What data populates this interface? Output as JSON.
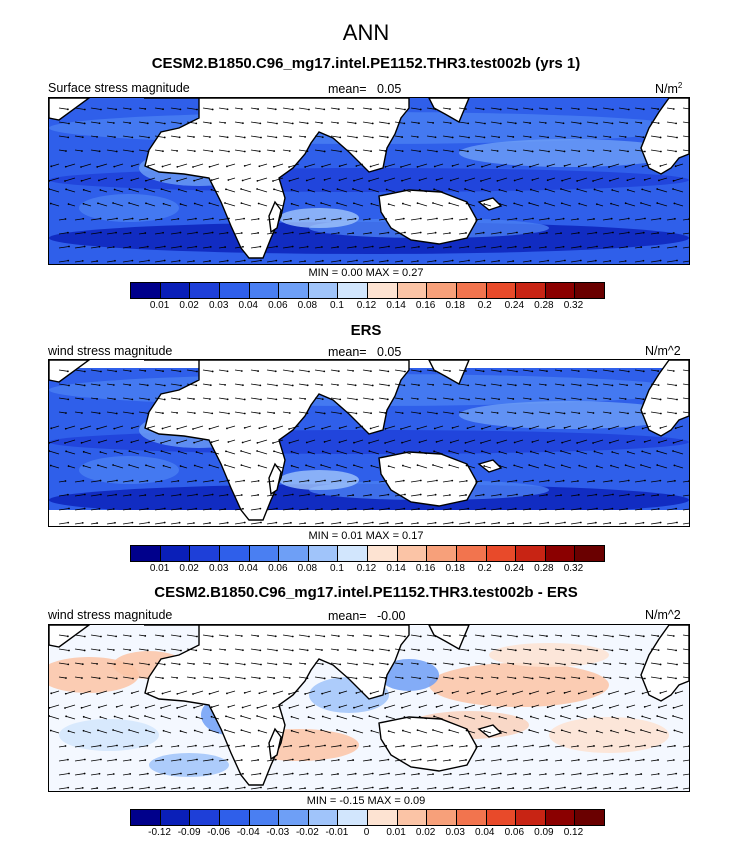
{
  "title": "ANN",
  "panels": [
    {
      "title": "CESM2.B1850.C96_mg17.intel.PE1152.THR3.test002b (yrs 1)",
      "left_label": "Surface stress magnitude",
      "mean_label": "mean=",
      "mean_value": "0.05",
      "units": "N/m",
      "units_sup": "2",
      "minmax": "MIN =  0.00 MAX =  0.27",
      "ticks": [
        "0.01",
        "0.02",
        "0.03",
        "0.04",
        "0.06",
        "0.08",
        "0.1",
        "0.12",
        "0.14",
        "0.16",
        "0.18",
        "0.2",
        "0.24",
        "0.28",
        "0.32"
      ],
      "colors": [
        "#00008b",
        "#0a1fb8",
        "#1e3fd8",
        "#2f5fea",
        "#4a7ff2",
        "#6e9ff6",
        "#a0c4fa",
        "#d2e6fd",
        "#fde3d2",
        "#fbc4a6",
        "#f7a07a",
        "#f2744e",
        "#e84a2a",
        "#c82414",
        "#8b0000",
        "#6a0000"
      ]
    },
    {
      "title": "ERS",
      "left_label": "wind stress magnitude",
      "mean_label": "mean=",
      "mean_value": "0.05",
      "units": "N/m^2",
      "units_sup": "",
      "minmax": "MIN =  0.01 MAX =  0.17",
      "ticks": [
        "0.01",
        "0.02",
        "0.03",
        "0.04",
        "0.06",
        "0.08",
        "0.1",
        "0.12",
        "0.14",
        "0.16",
        "0.18",
        "0.2",
        "0.24",
        "0.28",
        "0.32"
      ],
      "colors": [
        "#00008b",
        "#0a1fb8",
        "#1e3fd8",
        "#2f5fea",
        "#4a7ff2",
        "#6e9ff6",
        "#a0c4fa",
        "#d2e6fd",
        "#fde3d2",
        "#fbc4a6",
        "#f7a07a",
        "#f2744e",
        "#e84a2a",
        "#c82414",
        "#8b0000",
        "#6a0000"
      ]
    },
    {
      "title": "CESM2.B1850.C96_mg17.intel.PE1152.THR3.test002b - ERS",
      "left_label": "wind stress magnitude",
      "mean_label": "mean=",
      "mean_value": "-0.00",
      "units": "N/m^2",
      "units_sup": "",
      "minmax": "MIN = -0.15 MAX =  0.09",
      "ticks": [
        "-0.12",
        "-0.09",
        "-0.06",
        "-0.04",
        "-0.03",
        "-0.02",
        "-0.01",
        "0",
        "0.01",
        "0.02",
        "0.03",
        "0.04",
        "0.06",
        "0.09",
        "0.12"
      ],
      "colors": [
        "#00008b",
        "#0a1fb8",
        "#1e3fd8",
        "#2f5fea",
        "#4a7ff2",
        "#6e9ff6",
        "#a0c4fa",
        "#d2e6fd",
        "#fde3d2",
        "#fbc4a6",
        "#f7a07a",
        "#f2744e",
        "#e84a2a",
        "#c82414",
        "#8b0000",
        "#6a0000"
      ]
    }
  ]
}
